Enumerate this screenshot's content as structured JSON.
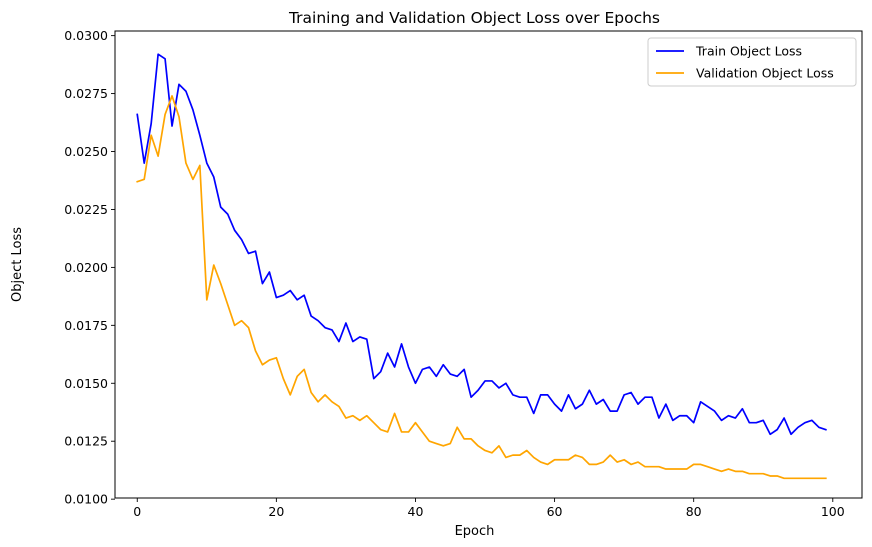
{
  "chart_data": {
    "type": "line",
    "title": "Training and Validation Object Loss over Epochs",
    "xlabel": "Epoch",
    "ylabel": "Object Loss",
    "xlim": [
      -3.2,
      104.2
    ],
    "ylim": [
      0.01005,
      0.0302
    ],
    "xticks": [
      0,
      20,
      40,
      60,
      80,
      100
    ],
    "xtick_labels": [
      "0",
      "20",
      "40",
      "60",
      "80",
      "100"
    ],
    "yticks": [
      0.01,
      0.0125,
      0.015,
      0.0175,
      0.02,
      0.0225,
      0.025,
      0.0275,
      0.03
    ],
    "ytick_labels": [
      "0.0100",
      "0.0125",
      "0.0150",
      "0.0175",
      "0.0200",
      "0.0225",
      "0.0250",
      "0.0275",
      "0.0300"
    ],
    "grid": false,
    "legend_position": "top-right",
    "x": [
      0,
      1,
      2,
      3,
      4,
      5,
      6,
      7,
      8,
      9,
      10,
      11,
      12,
      13,
      14,
      15,
      16,
      17,
      18,
      19,
      20,
      21,
      22,
      23,
      24,
      25,
      26,
      27,
      28,
      29,
      30,
      31,
      32,
      33,
      34,
      35,
      36,
      37,
      38,
      39,
      40,
      41,
      42,
      43,
      44,
      45,
      46,
      47,
      48,
      49,
      50,
      51,
      52,
      53,
      54,
      55,
      56,
      57,
      58,
      59,
      60,
      61,
      62,
      63,
      64,
      65,
      66,
      67,
      68,
      69,
      70,
      71,
      72,
      73,
      74,
      75,
      76,
      77,
      78,
      79,
      80,
      81,
      82,
      83,
      84,
      85,
      86,
      87,
      88,
      89,
      90,
      91,
      92,
      93,
      94,
      95,
      96,
      97,
      98,
      99
    ],
    "series": [
      {
        "name": "Train Object Loss",
        "color": "#0000ff",
        "values": [
          0.0266,
          0.0245,
          0.0262,
          0.0292,
          0.029,
          0.0261,
          0.0279,
          0.0276,
          0.0268,
          0.0257,
          0.0245,
          0.0239,
          0.0226,
          0.0223,
          0.0216,
          0.0212,
          0.0206,
          0.0207,
          0.0193,
          0.0198,
          0.0187,
          0.0188,
          0.019,
          0.0186,
          0.0188,
          0.0179,
          0.0177,
          0.0174,
          0.0173,
          0.0168,
          0.0176,
          0.0168,
          0.017,
          0.0169,
          0.0152,
          0.0155,
          0.0163,
          0.0157,
          0.0167,
          0.0157,
          0.015,
          0.0156,
          0.0157,
          0.0153,
          0.0158,
          0.0154,
          0.0153,
          0.0156,
          0.0144,
          0.0147,
          0.0151,
          0.0151,
          0.0148,
          0.015,
          0.0145,
          0.0144,
          0.0144,
          0.0137,
          0.0145,
          0.0145,
          0.0141,
          0.0138,
          0.0145,
          0.0139,
          0.0141,
          0.0147,
          0.0141,
          0.0143,
          0.0138,
          0.0138,
          0.0145,
          0.0146,
          0.0141,
          0.0144,
          0.0144,
          0.0135,
          0.0141,
          0.0134,
          0.0136,
          0.0136,
          0.0133,
          0.0142,
          0.014,
          0.0138,
          0.0134,
          0.0136,
          0.0135,
          0.0139,
          0.0133,
          0.0133,
          0.0134,
          0.0128,
          0.013,
          0.0135,
          0.0128,
          0.0131,
          0.0133,
          0.0134,
          0.0131,
          0.013
        ]
      },
      {
        "name": "Validation Object Loss",
        "color": "#ffa500",
        "values": [
          0.0237,
          0.0238,
          0.0257,
          0.0248,
          0.0266,
          0.0274,
          0.0265,
          0.0245,
          0.0238,
          0.0244,
          0.0186,
          0.0201,
          0.0193,
          0.0184,
          0.0175,
          0.0177,
          0.0174,
          0.0164,
          0.0158,
          0.016,
          0.0161,
          0.0152,
          0.0145,
          0.0153,
          0.0156,
          0.0146,
          0.0142,
          0.0145,
          0.0142,
          0.014,
          0.0135,
          0.0136,
          0.0134,
          0.0136,
          0.0133,
          0.013,
          0.0129,
          0.0137,
          0.0129,
          0.0129,
          0.0133,
          0.0129,
          0.0125,
          0.0124,
          0.0123,
          0.0124,
          0.0131,
          0.0126,
          0.0126,
          0.0123,
          0.0121,
          0.012,
          0.0123,
          0.0118,
          0.0119,
          0.0119,
          0.0121,
          0.0118,
          0.0116,
          0.0115,
          0.0117,
          0.0117,
          0.0117,
          0.0119,
          0.0118,
          0.0115,
          0.0115,
          0.0116,
          0.0119,
          0.0116,
          0.0117,
          0.0115,
          0.0116,
          0.0114,
          0.0114,
          0.0114,
          0.0113,
          0.0113,
          0.0113,
          0.0113,
          0.0115,
          0.0115,
          0.0114,
          0.0113,
          0.0112,
          0.0113,
          0.0112,
          0.0112,
          0.0111,
          0.0111,
          0.0111,
          0.011,
          0.011,
          0.0109,
          0.0109,
          0.0109,
          0.0109,
          0.0109,
          0.0109,
          0.0109
        ]
      }
    ]
  }
}
